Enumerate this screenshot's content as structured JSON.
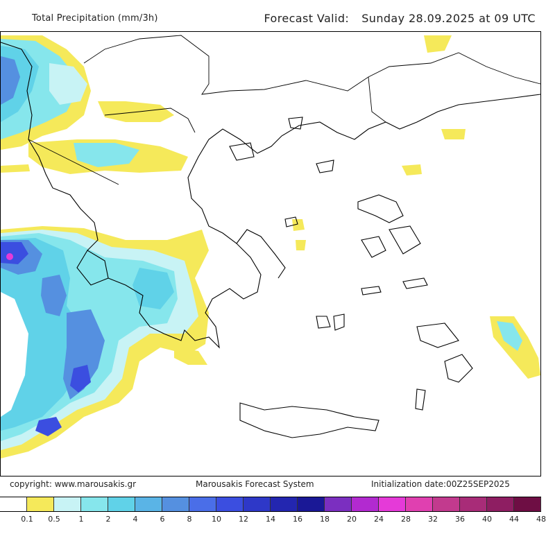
{
  "header": {
    "title": "Total Precipitation (mm/3h)",
    "valid_label": "Forecast Valid:",
    "valid_value": "Sunday 28.09.2025 at 09 UTC"
  },
  "footer": {
    "copyright": "copyright: www.marousakis.gr",
    "system": "Marousakis Forecast System",
    "init": "Initialization date:00Z25SEP2025"
  },
  "legend": {
    "labels": [
      "0.1",
      "0.5",
      "1",
      "2",
      "4",
      "6",
      "8",
      "10",
      "12",
      "14",
      "16",
      "18",
      "20",
      "24",
      "28",
      "32",
      "36",
      "40",
      "44",
      "48"
    ],
    "colors": [
      "#ffffff",
      "#f5e95a",
      "#c8f3f5",
      "#86e6ec",
      "#60d2e8",
      "#5ab4e6",
      "#5590e0",
      "#4a6ee8",
      "#3b4ee0",
      "#2e38c8",
      "#2326b0",
      "#1a1896",
      "#7b2fc0",
      "#b22ad0",
      "#e53ad8",
      "#e040b0",
      "#c23a8e",
      "#a82c78",
      "#8e1e62",
      "#6e0e44"
    ]
  },
  "map": {
    "coastline_color": "#000000",
    "land_border_color": "#000000"
  }
}
